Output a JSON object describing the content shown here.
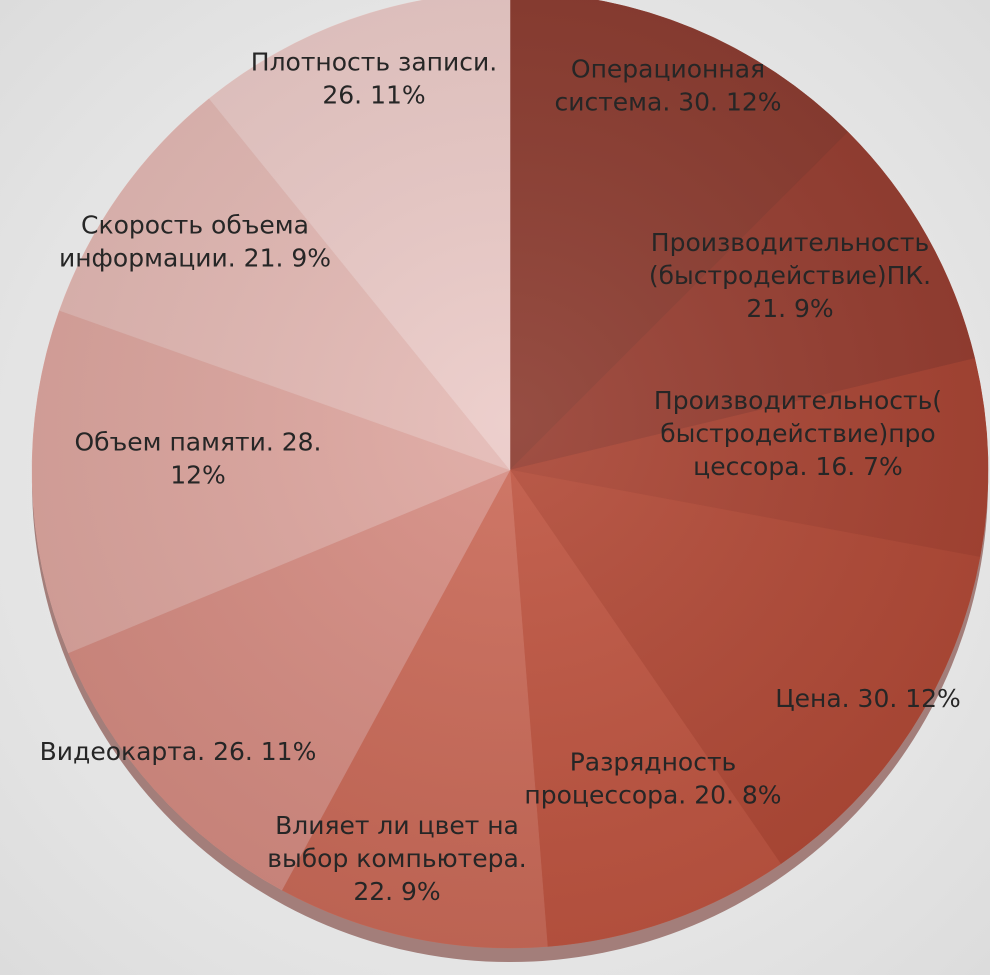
{
  "chart_data": {
    "type": "pie",
    "title": "",
    "start_angle_deg": 0,
    "direction": "clockwise",
    "slices": [
      {
        "label": "Операционная система. 30. 12%",
        "label_lines": [
          "Операционная",
          "система. 30. 12%"
        ],
        "value": 30,
        "percent": 12,
        "color": "#8b3a2e"
      },
      {
        "label": "Производительность (быстродействие)ПК. 21. 9%",
        "label_lines": [
          "Производительность",
          "(быстродействие)ПК.",
          "21. 9%"
        ],
        "value": 21,
        "percent": 9,
        "color": "#963c2f"
      },
      {
        "label": "Производительность( быстродействие)процессора. 16. 7%",
        "label_lines": [
          "Производительность(",
          "быстродействие)про",
          "цессора. 16. 7%"
        ],
        "value": 16,
        "percent": 7,
        "color": "#a84332"
      },
      {
        "label": "Цена. 30. 12%",
        "label_lines": [
          "Цена. 30. 12%"
        ],
        "value": 30,
        "percent": 12,
        "color": "#b24936"
      },
      {
        "label": "Разрядность процессора. 20. 8%",
        "label_lines": [
          "Разрядность",
          "процессора. 20. 8%"
        ],
        "value": 20,
        "percent": 8,
        "color": "#bf5440"
      },
      {
        "label": "Влияет ли цвет на выбор компьютера. 22. 9%",
        "label_lines": [
          "Влияет ли цвет на",
          "выбор компьютера.",
          "22. 9%"
        ],
        "value": 22,
        "percent": 9,
        "color": "#cb6a58"
      },
      {
        "label": "Видеокарта. 26. 11%",
        "label_lines": [
          "Видеокарта. 26. 11%"
        ],
        "value": 26,
        "percent": 11,
        "color": "#d68c82"
      },
      {
        "label": "Объем памяти. 28. 12%",
        "label_lines": [
          "Объем памяти. 28.",
          "12%"
        ],
        "value": 28,
        "percent": 12,
        "color": "#dea69f"
      },
      {
        "label": "Скорость объема информации. 21. 9%",
        "label_lines": [
          "Скорость объема",
          "информации. 21. 9%"
        ],
        "value": 21,
        "percent": 9,
        "color": "#e4b9b4"
      },
      {
        "label": "Плотность записи. 26. 11%",
        "label_lines": [
          "Плотность записи.",
          "26. 11%"
        ],
        "value": 26,
        "percent": 11,
        "color": "#ebcac7"
      }
    ]
  }
}
